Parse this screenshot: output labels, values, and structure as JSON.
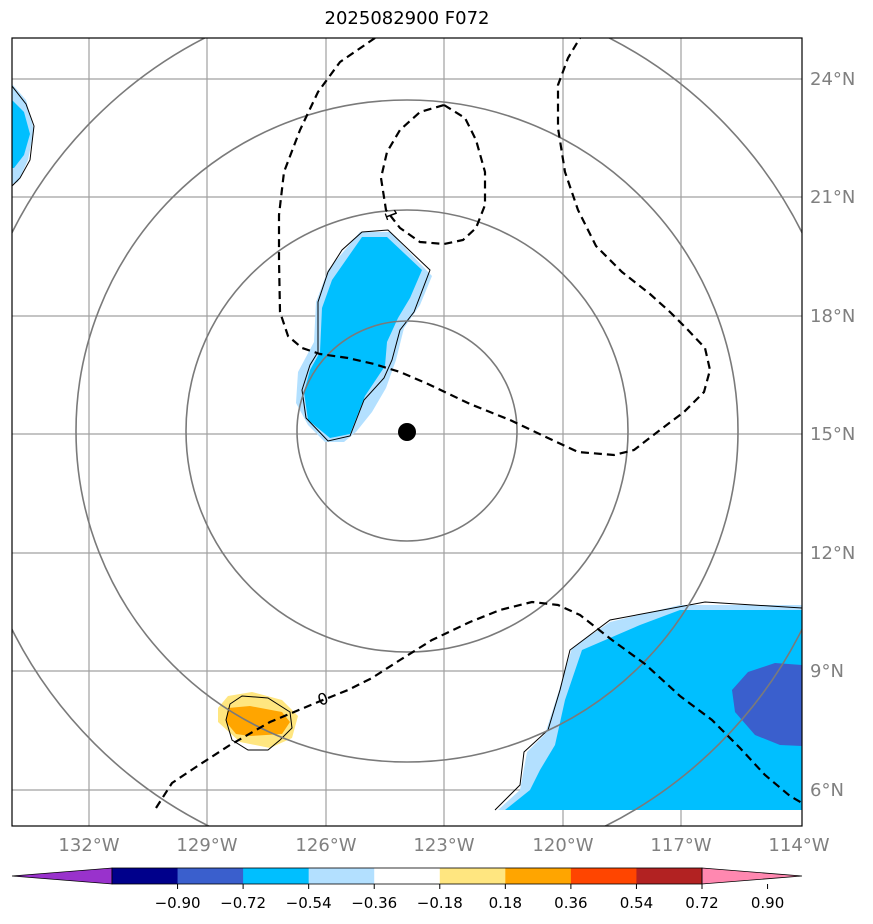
{
  "title": "2025082900 F072",
  "map": {
    "lon_range": [
      -134,
      -114
    ],
    "lat_range": [
      5,
      25
    ],
    "lat_ticks": [
      "6°N",
      "9°N",
      "12°N",
      "15°N",
      "18°N",
      "21°N",
      "24°N"
    ],
    "lon_ticks": [
      "132°W",
      "129°W",
      "126°W",
      "123°W",
      "120°W",
      "117°W",
      "114°W"
    ],
    "center_marker": {
      "lon": -124.0,
      "lat": 15.1
    },
    "range_rings": "concentric circles around center",
    "contour_labels": [
      "1",
      "0"
    ],
    "colors": {
      "light_blue": "#b3e0ff",
      "deep_sky_blue": "#00bfff",
      "royal_blue": "#3a5fcd",
      "light_yellow": "#ffe680",
      "orange": "#ffa500"
    }
  },
  "colorbar": {
    "labels": [
      "−0.90",
      "−0.72",
      "−0.54",
      "−0.36",
      "−0.18",
      "0.18",
      "0.36",
      "0.54",
      "0.72",
      "0.90"
    ],
    "colors": [
      "#9932cc",
      "#00008b",
      "#3a5fcd",
      "#00bfff",
      "#b3e0ff",
      "#ffffff",
      "#ffe680",
      "#ffa500",
      "#ff4500",
      "#b22222",
      "#ff88b0"
    ]
  }
}
